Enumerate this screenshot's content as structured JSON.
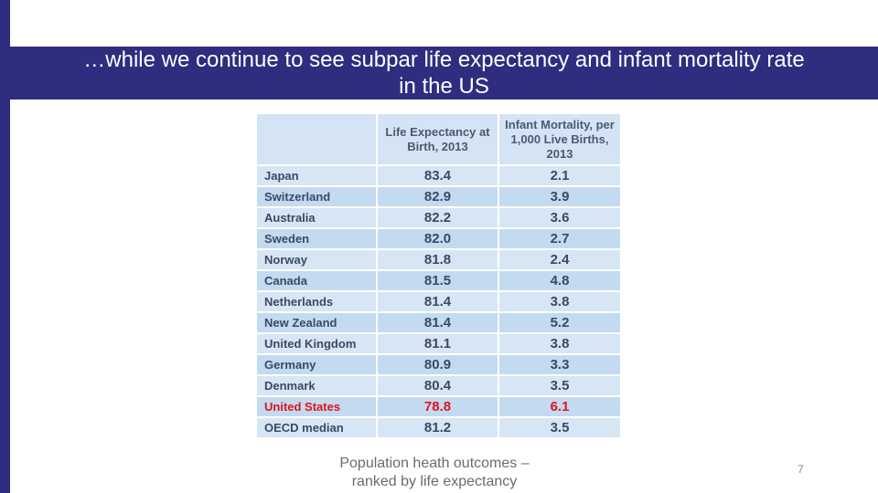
{
  "slide": {
    "title": "…while we continue to see subpar life expectancy and infant mortality rate in the US",
    "caption": "Population heath outcomes –\nranked by life expectancy",
    "page_number": "7",
    "colors": {
      "band": "#2e2d80",
      "highlight": "#e0141c"
    }
  },
  "table": {
    "headers": [
      "",
      "Life Expectancy at Birth, 2013",
      "Infant Mortality, per 1,000 Live Births, 2013"
    ],
    "rows": [
      {
        "country": "Japan",
        "life": "83.4",
        "infant": "2.1"
      },
      {
        "country": "Switzerland",
        "life": "82.9",
        "infant": "3.9"
      },
      {
        "country": "Australia",
        "life": "82.2",
        "infant": "3.6"
      },
      {
        "country": "Sweden",
        "life": "82.0",
        "infant": "2.7"
      },
      {
        "country": "Norway",
        "life": "81.8",
        "infant": "2.4"
      },
      {
        "country": "Canada",
        "life": "81.5",
        "infant": "4.8"
      },
      {
        "country": "Netherlands",
        "life": "81.4",
        "infant": "3.8"
      },
      {
        "country": "New Zealand",
        "life": "81.4",
        "infant": "5.2"
      },
      {
        "country": "United Kingdom",
        "life": "81.1",
        "infant": "3.8"
      },
      {
        "country": "Germany",
        "life": "80.9",
        "infant": "3.3"
      },
      {
        "country": "Denmark",
        "life": "80.4",
        "infant": "3.5"
      },
      {
        "country": "United States",
        "life": "78.8",
        "infant": "6.1",
        "highlight": true
      },
      {
        "country": "OECD median",
        "life": "81.2",
        "infant": "3.5"
      }
    ]
  }
}
